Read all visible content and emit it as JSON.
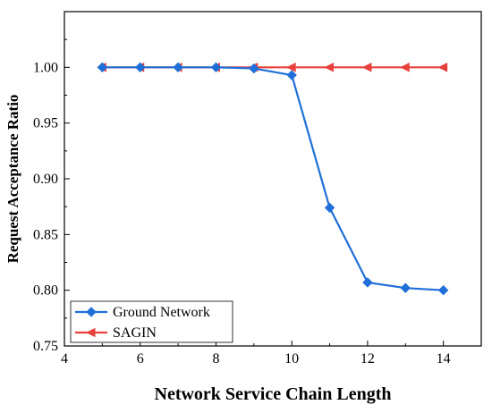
{
  "chart_data": {
    "type": "line",
    "xlabel": "Network Service Chain Length",
    "ylabel": "Request Acceptance Ratio",
    "xlim": [
      4,
      15
    ],
    "ylim": [
      0.75,
      1.05
    ],
    "xticks": [
      "4",
      "6",
      "8",
      "10",
      "12",
      "14"
    ],
    "yticks": [
      "0.75",
      "0.80",
      "0.85",
      "0.90",
      "0.95",
      "1.00"
    ],
    "x": [
      5,
      6,
      7,
      8,
      9,
      10,
      11,
      12,
      13,
      14
    ],
    "series": [
      {
        "name": "Ground Network",
        "color": "#1f6fd8",
        "marker": "diamond",
        "values": [
          1.0,
          1.0,
          1.0,
          1.0,
          0.999,
          0.993,
          0.874,
          0.807,
          0.802,
          0.8
        ]
      },
      {
        "name": "SAGIN",
        "color": "#e8413c",
        "marker": "triangle-left",
        "values": [
          1.0,
          1.0,
          1.0,
          1.0,
          1.0,
          1.0,
          1.0,
          1.0,
          1.0,
          1.0
        ]
      }
    ],
    "grid": false,
    "legend_position": "bottom-left"
  }
}
